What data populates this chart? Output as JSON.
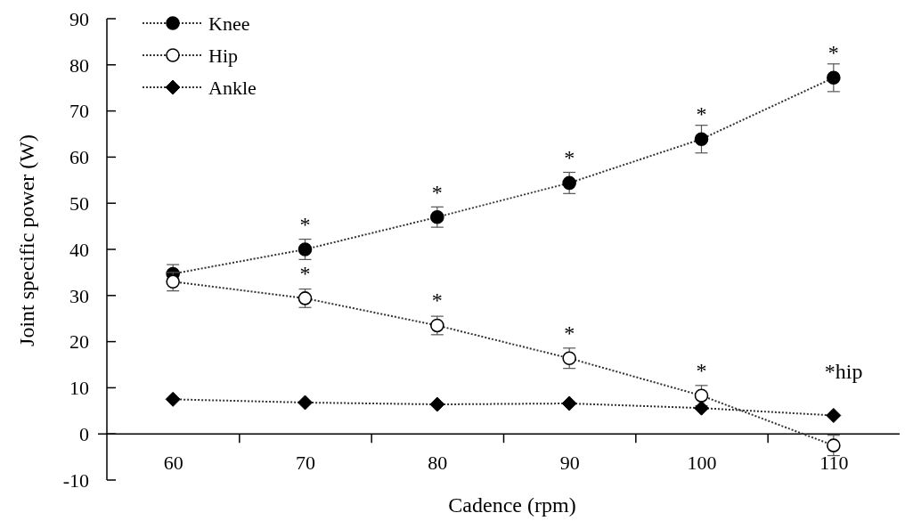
{
  "chart_data": {
    "type": "line",
    "xlabel": "Cadence (rpm)",
    "ylabel": "Joint specific power (W)",
    "x": [
      60,
      70,
      80,
      90,
      100,
      110
    ],
    "series": [
      {
        "name": "Knee",
        "color": "#000000",
        "marker": "circle",
        "values": [
          34.7,
          40,
          47,
          54.4,
          63.9,
          77.2
        ],
        "errors": [
          2,
          2.2,
          2.2,
          2.3,
          3,
          3
        ]
      },
      {
        "name": "Hip",
        "color": "#ffffff",
        "marker": "circle",
        "values": [
          33,
          29.4,
          23.5,
          16.4,
          8.3,
          -2.5
        ],
        "errors": [
          2,
          2,
          2,
          2.2,
          2.2,
          2.2
        ]
      },
      {
        "name": "Ankle",
        "color": "#000000",
        "marker": "diamond",
        "values": [
          7.5,
          6.8,
          6.4,
          6.6,
          5.6,
          4.0
        ]
      }
    ],
    "xlim": [
      55,
      115
    ],
    "ylim": [
      -10,
      90
    ],
    "xticks": [
      60,
      {
        "value": 65,
        "label": null
      },
      70,
      {
        "value": 75,
        "label": null
      },
      80,
      {
        "value": 85,
        "label": null
      },
      90,
      {
        "value": 95,
        "label": null
      },
      100,
      {
        "value": 105,
        "label": null
      },
      110
    ],
    "yticks": [
      -10,
      0,
      10,
      20,
      30,
      40,
      50,
      60,
      70,
      80,
      90
    ],
    "line_style": "dotted",
    "legend": "top left",
    "grid": false,
    "annotations": [
      {
        "text": "*",
        "x": 70,
        "y": 40
      },
      {
        "text": "*",
        "x": 80,
        "y": 47
      },
      {
        "text": "*",
        "x": 90,
        "y": 54.4
      },
      {
        "text": "*",
        "x": 100,
        "y": 63.9
      },
      {
        "text": "*",
        "x": 110,
        "y": 77.2
      },
      {
        "text": "*",
        "x": 70,
        "y": 29.4
      },
      {
        "text": "*",
        "x": 80,
        "y": 23.5
      },
      {
        "text": "*",
        "x": 90,
        "y": 16.4
      },
      {
        "text": "*",
        "x": 100,
        "y": 8.3
      },
      "*hip"
    ]
  }
}
